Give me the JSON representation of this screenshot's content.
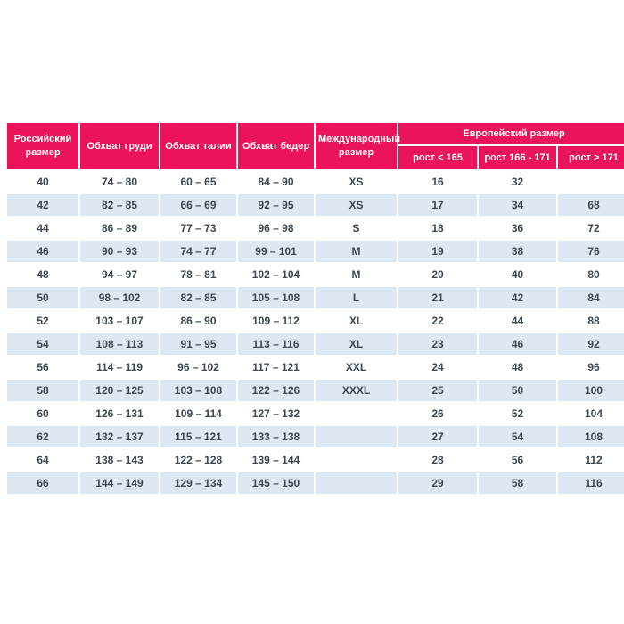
{
  "table": {
    "columns": [
      "Российский размер",
      "Обхват груди",
      "Обхват талии",
      "Обхват бедер",
      "Международный размер"
    ],
    "euro_header": "Европейский размер",
    "euro_subcolumns": [
      "рост < 165",
      "рост 166 - 171",
      "рост > 171"
    ],
    "rows": [
      [
        "40",
        "74 – 80",
        "60 – 65",
        "84 – 90",
        "XS",
        "16",
        "32",
        ""
      ],
      [
        "42",
        "82 – 85",
        "66 – 69",
        "92 – 95",
        "XS",
        "17",
        "34",
        "68"
      ],
      [
        "44",
        "86 – 89",
        "77 – 73",
        "96 – 98",
        "S",
        "18",
        "36",
        "72"
      ],
      [
        "46",
        "90 – 93",
        "74 – 77",
        "99 – 101",
        "M",
        "19",
        "38",
        "76"
      ],
      [
        "48",
        "94 – 97",
        "78 – 81",
        "102 – 104",
        "M",
        "20",
        "40",
        "80"
      ],
      [
        "50",
        "98 – 102",
        "82 – 85",
        "105 – 108",
        "L",
        "21",
        "42",
        "84"
      ],
      [
        "52",
        "103 – 107",
        "86 – 90",
        "109 – 112",
        "XL",
        "22",
        "44",
        "88"
      ],
      [
        "54",
        "108 – 113",
        "91 – 95",
        "113 – 116",
        "XL",
        "23",
        "46",
        "92"
      ],
      [
        "56",
        "114 – 119",
        "96 – 102",
        "117 – 121",
        "XXL",
        "24",
        "48",
        "96"
      ],
      [
        "58",
        "120 – 125",
        "103 – 108",
        "122 – 126",
        "XXXL",
        "25",
        "50",
        "100"
      ],
      [
        "60",
        "126 – 131",
        "109 – 114",
        "127 – 132",
        "",
        "26",
        "52",
        "104"
      ],
      [
        "62",
        "132 – 137",
        "115 – 121",
        "133 – 138",
        "",
        "27",
        "54",
        "108"
      ],
      [
        "64",
        "138 – 143",
        "122 – 128",
        "139 – 144",
        "",
        "28",
        "56",
        "112"
      ],
      [
        "66",
        "144 – 149",
        "129 – 134",
        "145 – 150",
        "",
        "29",
        "58",
        "116"
      ]
    ],
    "colors": {
      "header_bg": "#EC1459",
      "header_text": "#FFFFFF",
      "row_alt_bg": "#DEE8F4",
      "row_bg": "#FFFFFF",
      "cell_text": "#3C4751"
    }
  }
}
